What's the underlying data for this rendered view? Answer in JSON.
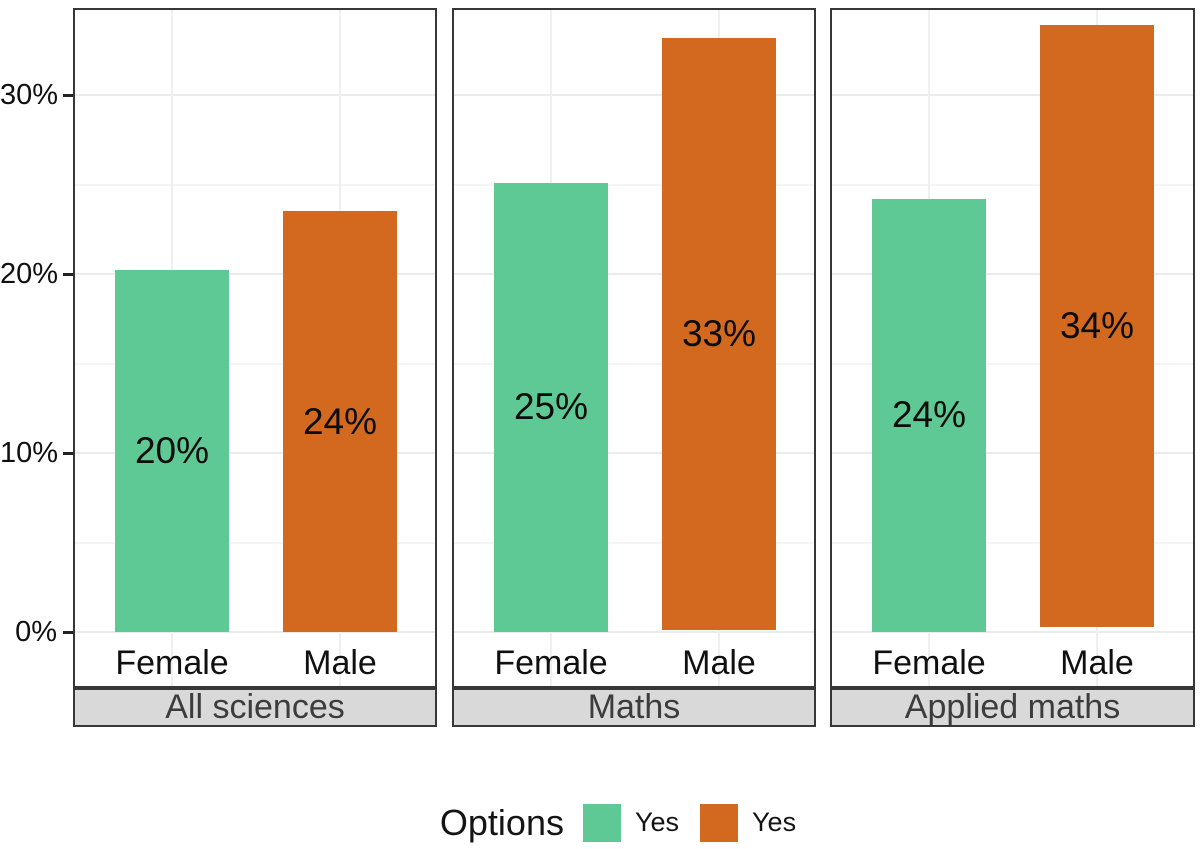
{
  "chart_data": {
    "type": "bar",
    "title": "",
    "categories": [
      "Female",
      "Male"
    ],
    "y_axis": {
      "ticks": [
        {
          "value": 0,
          "label": "0%"
        },
        {
          "value": 10,
          "label": "10%"
        },
        {
          "value": 20,
          "label": "20%"
        },
        {
          "value": 30,
          "label": "30%"
        }
      ],
      "ylim": [
        -3.1,
        34.8
      ],
      "grid_major": [
        0,
        10,
        20,
        30
      ],
      "grid_minor": [
        5,
        15,
        25
      ]
    },
    "facets": [
      {
        "label": "All sciences",
        "bars": [
          {
            "category": "Female",
            "series": "Yes",
            "value": 20,
            "data_label": "20%",
            "color": "#5ec994",
            "bar_top_pct": 20.2,
            "bar_base_pct": 0
          },
          {
            "category": "Male",
            "series": "Yes",
            "value": 24,
            "data_label": "24%",
            "color": "#d2691f",
            "bar_top_pct": 23.5,
            "bar_base_pct": 0
          }
        ]
      },
      {
        "label": "Maths",
        "bars": [
          {
            "category": "Female",
            "series": "Yes",
            "value": 25,
            "data_label": "25%",
            "color": "#5ec994",
            "bar_top_pct": 25.1,
            "bar_base_pct": 0
          },
          {
            "category": "Male",
            "series": "Yes",
            "value": 33,
            "data_label": "33%",
            "color": "#d2691f",
            "bar_top_pct": 33.2,
            "bar_base_pct": 0.1
          }
        ]
      },
      {
        "label": "Applied maths",
        "bars": [
          {
            "category": "Female",
            "series": "Yes",
            "value": 24,
            "data_label": "24%",
            "color": "#5ec994",
            "bar_top_pct": 24.2,
            "bar_base_pct": 0
          },
          {
            "category": "Male",
            "series": "Yes",
            "value": 34,
            "data_label": "34%",
            "color": "#d2691f",
            "bar_top_pct": 33.9,
            "bar_base_pct": 0.3
          }
        ]
      }
    ],
    "legend": {
      "title": "Options",
      "position": "bottom",
      "items": [
        {
          "label": "Yes",
          "color": "#5ec994"
        },
        {
          "label": "Yes",
          "color": "#d2691f"
        }
      ]
    },
    "colors": {
      "yes_green": "#5ec994",
      "yes_orange": "#d2691f",
      "strip_background": "#d9d9d9"
    }
  }
}
